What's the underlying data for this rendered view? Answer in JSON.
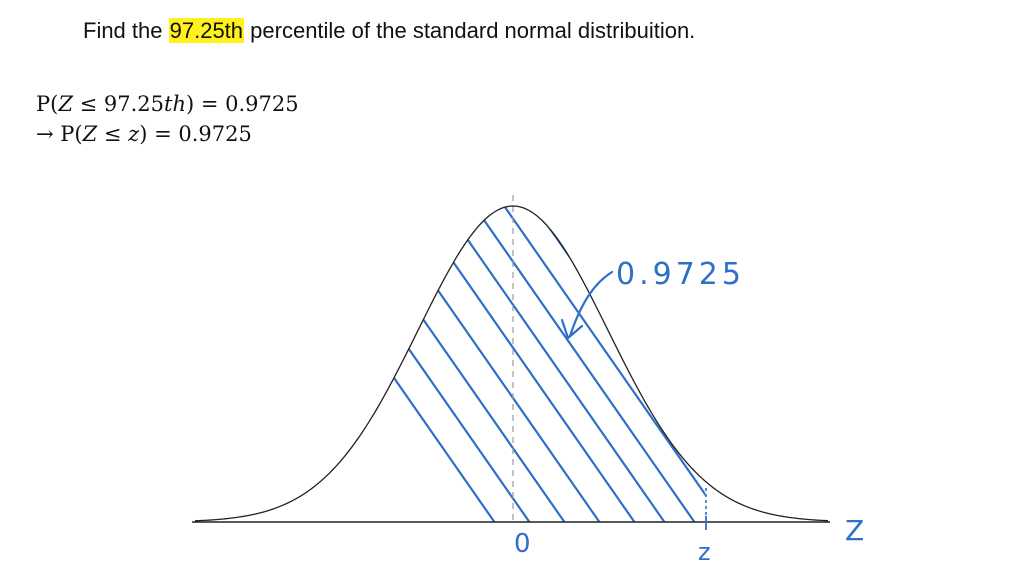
{
  "question": {
    "prefix": "Find the",
    "highlight": "97.25th",
    "suffix": "percentile of the standard normal distribuition."
  },
  "equations": {
    "line1": {
      "lhs_open": "P(",
      "var": "Z",
      "rel": " ≤ 97.25",
      "suffix": "th",
      "rhs": ") = 0.9725"
    },
    "line2": {
      "arrow": "→ ",
      "lhs_open": "P(",
      "var": "Z",
      "rel": " ≤ ",
      "var2": "z",
      "rhs": ") = 0.9725"
    }
  },
  "diagram": {
    "area_label": "0.9725",
    "axis_label": "Z",
    "center_label": "0",
    "z_label": "z",
    "colors": {
      "ink": "#2f6fc8",
      "curve": "#222222",
      "axis": "#222222",
      "mean_line": "#9a9a9a",
      "highlight": "#fff21c"
    }
  }
}
